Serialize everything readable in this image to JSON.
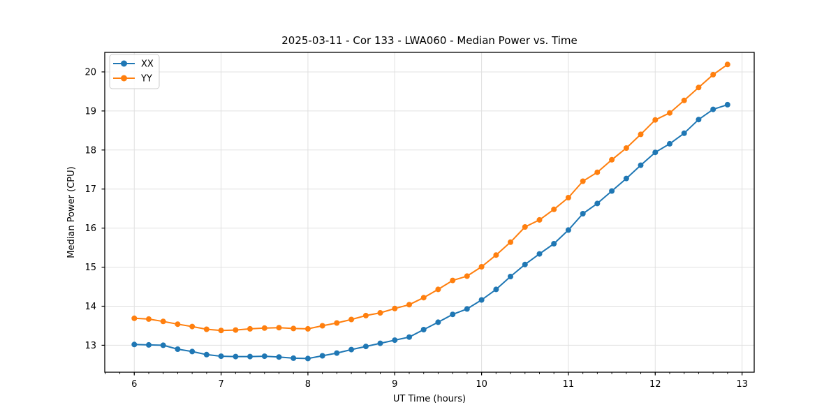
{
  "chart_data": {
    "type": "line",
    "title": "2025-03-11 - Cor 133 - LWA060 - Median Power vs. Time",
    "xlabel": "UT Time (hours)",
    "ylabel": "Median Power (CPU)",
    "xlim": [
      5.66,
      13.14
    ],
    "ylim": [
      12.31,
      20.5
    ],
    "xticks": [
      6,
      7,
      8,
      9,
      10,
      11,
      12,
      13
    ],
    "yticks": [
      13,
      14,
      15,
      16,
      17,
      18,
      19,
      20
    ],
    "x_minor_step": 0.1666667,
    "grid": true,
    "grid_color": "#e0e0e0",
    "legend_position": "upper left",
    "marker": "circle",
    "x": [
      6.0,
      6.167,
      6.333,
      6.5,
      6.667,
      6.833,
      7.0,
      7.167,
      7.333,
      7.5,
      7.667,
      7.833,
      8.0,
      8.167,
      8.333,
      8.5,
      8.667,
      8.833,
      9.0,
      9.167,
      9.333,
      9.5,
      9.667,
      9.833,
      10.0,
      10.167,
      10.333,
      10.5,
      10.667,
      10.833,
      11.0,
      11.167,
      11.333,
      11.5,
      11.667,
      11.833,
      12.0,
      12.167,
      12.333,
      12.5,
      12.667,
      12.833
    ],
    "series": [
      {
        "name": "XX",
        "color": "#1f77b4",
        "values": [
          13.02,
          13.01,
          13.0,
          12.9,
          12.84,
          12.76,
          12.72,
          12.71,
          12.71,
          12.72,
          12.7,
          12.67,
          12.66,
          12.73,
          12.8,
          12.89,
          12.97,
          13.05,
          13.13,
          13.21,
          13.4,
          13.59,
          13.79,
          13.93,
          14.16,
          14.43,
          14.76,
          15.07,
          15.34,
          15.6,
          15.95,
          16.37,
          16.63,
          16.95,
          17.27,
          17.61,
          17.94,
          18.16,
          18.43,
          18.78,
          19.04,
          19.16
        ]
      },
      {
        "name": "YY",
        "color": "#ff7f0e",
        "values": [
          13.69,
          13.67,
          13.61,
          13.54,
          13.48,
          13.41,
          13.38,
          13.39,
          13.42,
          13.44,
          13.45,
          13.43,
          13.42,
          13.5,
          13.57,
          13.66,
          13.76,
          13.83,
          13.94,
          14.04,
          14.22,
          14.43,
          14.66,
          14.77,
          15.01,
          15.31,
          15.64,
          16.03,
          16.21,
          16.48,
          16.78,
          17.2,
          17.43,
          17.75,
          18.05,
          18.4,
          18.77,
          18.95,
          19.27,
          19.6,
          19.93,
          20.19
        ]
      }
    ]
  }
}
